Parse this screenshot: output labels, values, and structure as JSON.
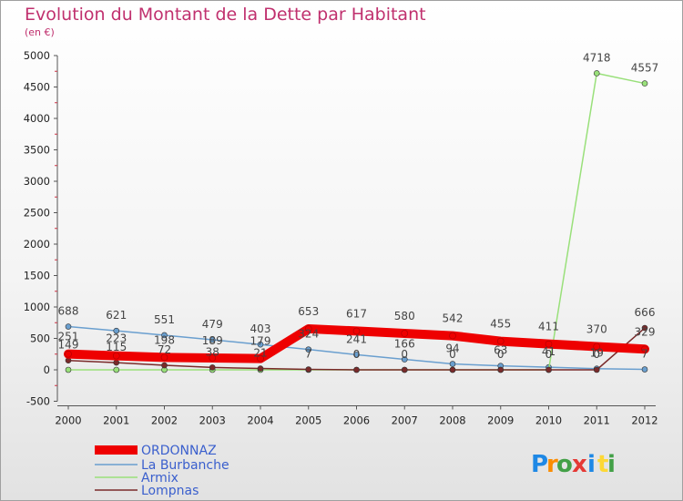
{
  "header": {
    "title": "Evolution du Montant de la Dette par Habitant",
    "subtitle": "(en €)"
  },
  "logo": {
    "letters": [
      "P",
      "r",
      "o",
      "x",
      "i",
      "t",
      "i"
    ],
    "colors": [
      "#1e88e5",
      "#fb8c00",
      "#43a047",
      "#e53935",
      "#1e88e5",
      "#fdd835",
      "#43a047"
    ]
  },
  "chart_data": {
    "type": "line",
    "x": [
      "2000",
      "2001",
      "2002",
      "2003",
      "2004",
      "2005",
      "2006",
      "2007",
      "2008",
      "2009",
      "2010",
      "2011",
      "2012"
    ],
    "ylim": [
      -500,
      5000
    ],
    "yticks": [
      -500,
      0,
      500,
      1000,
      1500,
      2000,
      2500,
      3000,
      3500,
      4000,
      4500,
      5000
    ],
    "grid": false,
    "legend_position": "bottom-left",
    "series": [
      {
        "name": "ORDONNAZ",
        "color": "#ee0000",
        "values": [
          251,
          223,
          198,
          189,
          179,
          653,
          617,
          580,
          542,
          455,
          411,
          370,
          329
        ],
        "labels": [
          "251",
          "223",
          "198",
          "189",
          "179",
          "653",
          "617",
          "580",
          "542",
          "455",
          "411",
          "370",
          "329"
        ]
      },
      {
        "name": "La Burbanche",
        "color": "#6a9fcf",
        "values": [
          688,
          621,
          551,
          479,
          403,
          324,
          241,
          166,
          94,
          63,
          41,
          19,
          7
        ],
        "labels": [
          "688",
          "621",
          "551",
          "479",
          "403",
          "324",
          "241",
          "166",
          "94",
          "63",
          "41",
          "19",
          "7"
        ]
      },
      {
        "name": "Armix",
        "color": "#99e07a",
        "values": [
          0,
          0,
          0,
          0,
          0,
          0,
          0,
          0,
          0,
          0,
          0,
          4718,
          4557
        ],
        "labels": [
          "",
          "",
          "",
          "",
          "",
          "",
          "",
          "",
          "",
          "",
          "",
          "4718",
          "4557"
        ]
      },
      {
        "name": "Lompnas",
        "color": "#7a2a2a",
        "values": [
          149,
          115,
          72,
          38,
          21,
          7,
          0,
          0,
          0,
          0,
          0,
          0,
          666
        ],
        "labels": [
          "149",
          "115",
          "72",
          "38",
          "21",
          "7",
          "0",
          "0",
          "0",
          "0",
          "0",
          "0",
          "666"
        ]
      }
    ]
  }
}
